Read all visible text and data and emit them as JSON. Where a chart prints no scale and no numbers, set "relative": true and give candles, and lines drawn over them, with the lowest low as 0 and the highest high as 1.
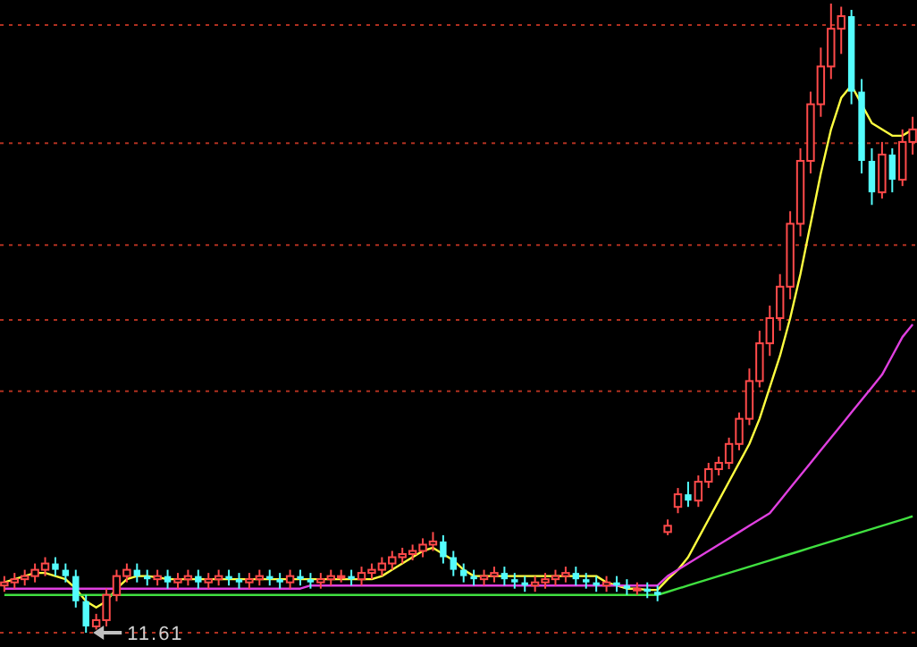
{
  "chart_data": {
    "type": "candlestick",
    "relative": true,
    "categories": [
      null,
      null,
      null,
      null,
      null,
      null,
      null,
      null,
      null,
      null,
      null,
      null,
      null,
      null,
      null,
      null,
      null,
      null,
      null,
      null,
      null,
      null,
      null,
      null,
      null,
      null,
      null,
      null,
      null,
      null,
      null,
      null,
      null,
      null,
      null,
      null,
      null,
      null,
      null,
      null,
      null,
      null,
      null,
      null,
      null,
      null,
      null,
      null,
      null,
      null,
      null,
      null,
      null,
      null,
      null,
      null,
      null,
      null,
      null,
      null,
      null,
      null,
      null,
      null,
      null,
      null,
      null,
      null,
      null,
      null,
      null,
      null,
      null,
      null,
      null,
      null,
      null,
      null,
      null,
      null,
      null,
      null,
      null,
      null,
      null,
      null,
      null,
      null,
      null,
      null
    ],
    "ohlc": [
      [
        0.075,
        0.09,
        0.065,
        0.08
      ],
      [
        0.08,
        0.095,
        0.07,
        0.085
      ],
      [
        0.085,
        0.1,
        0.075,
        0.09
      ],
      [
        0.09,
        0.11,
        0.08,
        0.1
      ],
      [
        0.1,
        0.12,
        0.09,
        0.11
      ],
      [
        0.11,
        0.12,
        0.09,
        0.1
      ],
      [
        0.1,
        0.11,
        0.08,
        0.09
      ],
      [
        0.09,
        0.1,
        0.04,
        0.05
      ],
      [
        0.05,
        0.06,
        0,
        0.01
      ],
      [
        0.01,
        0.03,
        0.005,
        0.02
      ],
      [
        0.02,
        0.07,
        0.01,
        0.06
      ],
      [
        0.06,
        0.1,
        0.05,
        0.09
      ],
      [
        0.09,
        0.11,
        0.08,
        0.1
      ],
      [
        0.1,
        0.11,
        0.08,
        0.09
      ],
      [
        0.09,
        0.1,
        0.075,
        0.085
      ],
      [
        0.085,
        0.1,
        0.075,
        0.09
      ],
      [
        0.09,
        0.1,
        0.07,
        0.08
      ],
      [
        0.08,
        0.095,
        0.07,
        0.085
      ],
      [
        0.085,
        0.1,
        0.075,
        0.09
      ],
      [
        0.09,
        0.1,
        0.07,
        0.08
      ],
      [
        0.08,
        0.095,
        0.07,
        0.085
      ],
      [
        0.085,
        0.1,
        0.075,
        0.09
      ],
      [
        0.09,
        0.1,
        0.075,
        0.085
      ],
      [
        0.085,
        0.095,
        0.07,
        0.08
      ],
      [
        0.08,
        0.095,
        0.07,
        0.085
      ],
      [
        0.085,
        0.1,
        0.075,
        0.09
      ],
      [
        0.09,
        0.1,
        0.075,
        0.085
      ],
      [
        0.085,
        0.095,
        0.07,
        0.08
      ],
      [
        0.08,
        0.1,
        0.07,
        0.09
      ],
      [
        0.09,
        0.1,
        0.075,
        0.085
      ],
      [
        0.085,
        0.095,
        0.07,
        0.08
      ],
      [
        0.08,
        0.095,
        0.07,
        0.085
      ],
      [
        0.085,
        0.1,
        0.075,
        0.09
      ],
      [
        0.09,
        0.1,
        0.08,
        0.09
      ],
      [
        0.09,
        0.1,
        0.075,
        0.085
      ],
      [
        0.085,
        0.105,
        0.075,
        0.095
      ],
      [
        0.095,
        0.11,
        0.085,
        0.1
      ],
      [
        0.1,
        0.12,
        0.09,
        0.11
      ],
      [
        0.11,
        0.13,
        0.1,
        0.12
      ],
      [
        0.12,
        0.135,
        0.11,
        0.125
      ],
      [
        0.125,
        0.14,
        0.115,
        0.13
      ],
      [
        0.13,
        0.15,
        0.12,
        0.14
      ],
      [
        0.14,
        0.16,
        0.13,
        0.145
      ],
      [
        0.145,
        0.155,
        0.11,
        0.12
      ],
      [
        0.12,
        0.13,
        0.09,
        0.1
      ],
      [
        0.1,
        0.11,
        0.08,
        0.09
      ],
      [
        0.09,
        0.1,
        0.075,
        0.085
      ],
      [
        0.085,
        0.1,
        0.075,
        0.09
      ],
      [
        0.09,
        0.105,
        0.08,
        0.095
      ],
      [
        0.095,
        0.105,
        0.075,
        0.085
      ],
      [
        0.085,
        0.095,
        0.07,
        0.08
      ],
      [
        0.08,
        0.09,
        0.065,
        0.075
      ],
      [
        0.075,
        0.09,
        0.065,
        0.08
      ],
      [
        0.08,
        0.095,
        0.07,
        0.085
      ],
      [
        0.085,
        0.1,
        0.075,
        0.09
      ],
      [
        0.09,
        0.105,
        0.08,
        0.095
      ],
      [
        0.095,
        0.105,
        0.075,
        0.085
      ],
      [
        0.085,
        0.095,
        0.07,
        0.08
      ],
      [
        0.08,
        0.09,
        0.065,
        0.075
      ],
      [
        0.075,
        0.09,
        0.065,
        0.08
      ],
      [
        0.08,
        0.09,
        0.065,
        0.075
      ],
      [
        0.075,
        0.085,
        0.06,
        0.07
      ],
      [
        0.07,
        0.08,
        0.06,
        0.07
      ],
      [
        0.07,
        0.08,
        0.055,
        0.065
      ],
      [
        0.065,
        0.075,
        0.05,
        0.06
      ],
      [
        0.16,
        0.18,
        0.155,
        0.17
      ],
      [
        0.2,
        0.23,
        0.19,
        0.22
      ],
      [
        0.22,
        0.24,
        0.2,
        0.21
      ],
      [
        0.21,
        0.25,
        0.2,
        0.24
      ],
      [
        0.24,
        0.27,
        0.23,
        0.26
      ],
      [
        0.26,
        0.28,
        0.25,
        0.27
      ],
      [
        0.27,
        0.31,
        0.26,
        0.3
      ],
      [
        0.3,
        0.35,
        0.29,
        0.34
      ],
      [
        0.34,
        0.42,
        0.33,
        0.4
      ],
      [
        0.4,
        0.48,
        0.39,
        0.46
      ],
      [
        0.46,
        0.52,
        0.44,
        0.5
      ],
      [
        0.5,
        0.57,
        0.48,
        0.55
      ],
      [
        0.55,
        0.67,
        0.53,
        0.65
      ],
      [
        0.65,
        0.77,
        0.63,
        0.75
      ],
      [
        0.75,
        0.86,
        0.73,
        0.84
      ],
      [
        0.84,
        0.93,
        0.82,
        0.9
      ],
      [
        0.9,
        1,
        0.88,
        0.96
      ],
      [
        0.96,
        0.995,
        0.92,
        0.98
      ],
      [
        0.98,
        0.99,
        0.84,
        0.86
      ],
      [
        0.86,
        0.88,
        0.73,
        0.75
      ],
      [
        0.75,
        0.77,
        0.68,
        0.7
      ],
      [
        0.7,
        0.78,
        0.69,
        0.76
      ],
      [
        0.76,
        0.77,
        0.7,
        0.72
      ],
      [
        0.72,
        0.8,
        0.71,
        0.78
      ],
      [
        0.78,
        0.82,
        0.76,
        0.8
      ]
    ],
    "series": [
      {
        "type": "line",
        "color": "#ffff40",
        "values": [
          0.08,
          0.085,
          0.09,
          0.095,
          0.095,
          0.09,
          0.085,
          0.07,
          0.05,
          0.04,
          0.05,
          0.07,
          0.085,
          0.09,
          0.09,
          0.088,
          0.085,
          0.085,
          0.085,
          0.085,
          0.085,
          0.085,
          0.085,
          0.085,
          0.085,
          0.085,
          0.085,
          0.085,
          0.085,
          0.085,
          0.085,
          0.085,
          0.085,
          0.085,
          0.085,
          0.085,
          0.085,
          0.09,
          0.1,
          0.11,
          0.12,
          0.13,
          0.135,
          0.125,
          0.115,
          0.1,
          0.09,
          0.09,
          0.09,
          0.09,
          0.09,
          0.09,
          0.09,
          0.09,
          0.09,
          0.09,
          0.09,
          0.09,
          0.09,
          0.08,
          0.075,
          0.07,
          0.07,
          0.068,
          0.068,
          0.085,
          0.1,
          0.12,
          0.15,
          0.18,
          0.21,
          0.24,
          0.27,
          0.3,
          0.34,
          0.39,
          0.44,
          0.5,
          0.57,
          0.65,
          0.73,
          0.8,
          0.85,
          0.87,
          0.84,
          0.81,
          0.8,
          0.79,
          0.79,
          0.8
        ]
      },
      {
        "type": "line",
        "color": "#e040e0",
        "values": [
          0.07,
          0.07,
          0.07,
          0.07,
          0.07,
          0.07,
          0.07,
          0.07,
          0.07,
          0.07,
          0.07,
          0.07,
          0.07,
          0.07,
          0.07,
          0.07,
          0.07,
          0.07,
          0.07,
          0.07,
          0.07,
          0.07,
          0.07,
          0.07,
          0.07,
          0.07,
          0.07,
          0.07,
          0.07,
          0.07,
          0.075,
          0.075,
          0.075,
          0.075,
          0.075,
          0.075,
          0.075,
          0.075,
          0.075,
          0.075,
          0.075,
          0.075,
          0.075,
          0.075,
          0.075,
          0.075,
          0.075,
          0.075,
          0.075,
          0.075,
          0.075,
          0.075,
          0.075,
          0.075,
          0.075,
          0.075,
          0.075,
          0.075,
          0.075,
          0.075,
          0.075,
          0.075,
          0.075,
          0.075,
          0.075,
          0.09,
          0.1,
          0.11,
          0.12,
          0.13,
          0.14,
          0.15,
          0.16,
          0.17,
          0.18,
          0.19,
          0.21,
          0.23,
          0.25,
          0.27,
          0.29,
          0.31,
          0.33,
          0.35,
          0.37,
          0.39,
          0.41,
          0.44,
          0.47,
          0.49
        ]
      },
      {
        "type": "line",
        "color": "#40e040",
        "values": [
          0.06,
          0.06,
          0.06,
          0.06,
          0.06,
          0.06,
          0.06,
          0.06,
          0.06,
          0.06,
          0.06,
          0.06,
          0.06,
          0.06,
          0.06,
          0.06,
          0.06,
          0.06,
          0.06,
          0.06,
          0.06,
          0.06,
          0.06,
          0.06,
          0.06,
          0.06,
          0.06,
          0.06,
          0.06,
          0.06,
          0.06,
          0.06,
          0.06,
          0.06,
          0.06,
          0.06,
          0.06,
          0.06,
          0.06,
          0.06,
          0.06,
          0.06,
          0.06,
          0.06,
          0.06,
          0.06,
          0.06,
          0.06,
          0.06,
          0.06,
          0.06,
          0.06,
          0.06,
          0.06,
          0.06,
          0.06,
          0.06,
          0.06,
          0.06,
          0.06,
          0.06,
          0.06,
          0.06,
          0.06,
          0.06,
          0.065,
          0.07,
          0.075,
          0.08,
          0.085,
          0.09,
          0.095,
          0.1,
          0.105,
          0.11,
          0.115,
          0.12,
          0.125,
          0.13,
          0.135,
          0.14,
          0.145,
          0.15,
          0.155,
          0.16,
          0.165,
          0.17,
          0.175,
          0.18,
          0.185
        ]
      }
    ],
    "ref_lines": [
      {
        "axis": "y",
        "value": 0.966,
        "color": "#b03020",
        "line_style": "dotted"
      },
      {
        "axis": "y",
        "value": 0.778,
        "color": "#b03020",
        "line_style": "dotted"
      },
      {
        "axis": "y",
        "value": 0.616,
        "color": "#b03020",
        "line_style": "dotted"
      },
      {
        "axis": "y",
        "value": 0.497,
        "color": "#b03020",
        "line_style": "dotted"
      },
      {
        "axis": "y",
        "value": 0.384,
        "color": "#b03020",
        "line_style": "dotted"
      },
      {
        "axis": "y",
        "value": 0,
        "color": "#b03020",
        "line_style": "dotted"
      }
    ],
    "annotations": [
      {
        "text": "11.61",
        "y": 0
      }
    ]
  }
}
